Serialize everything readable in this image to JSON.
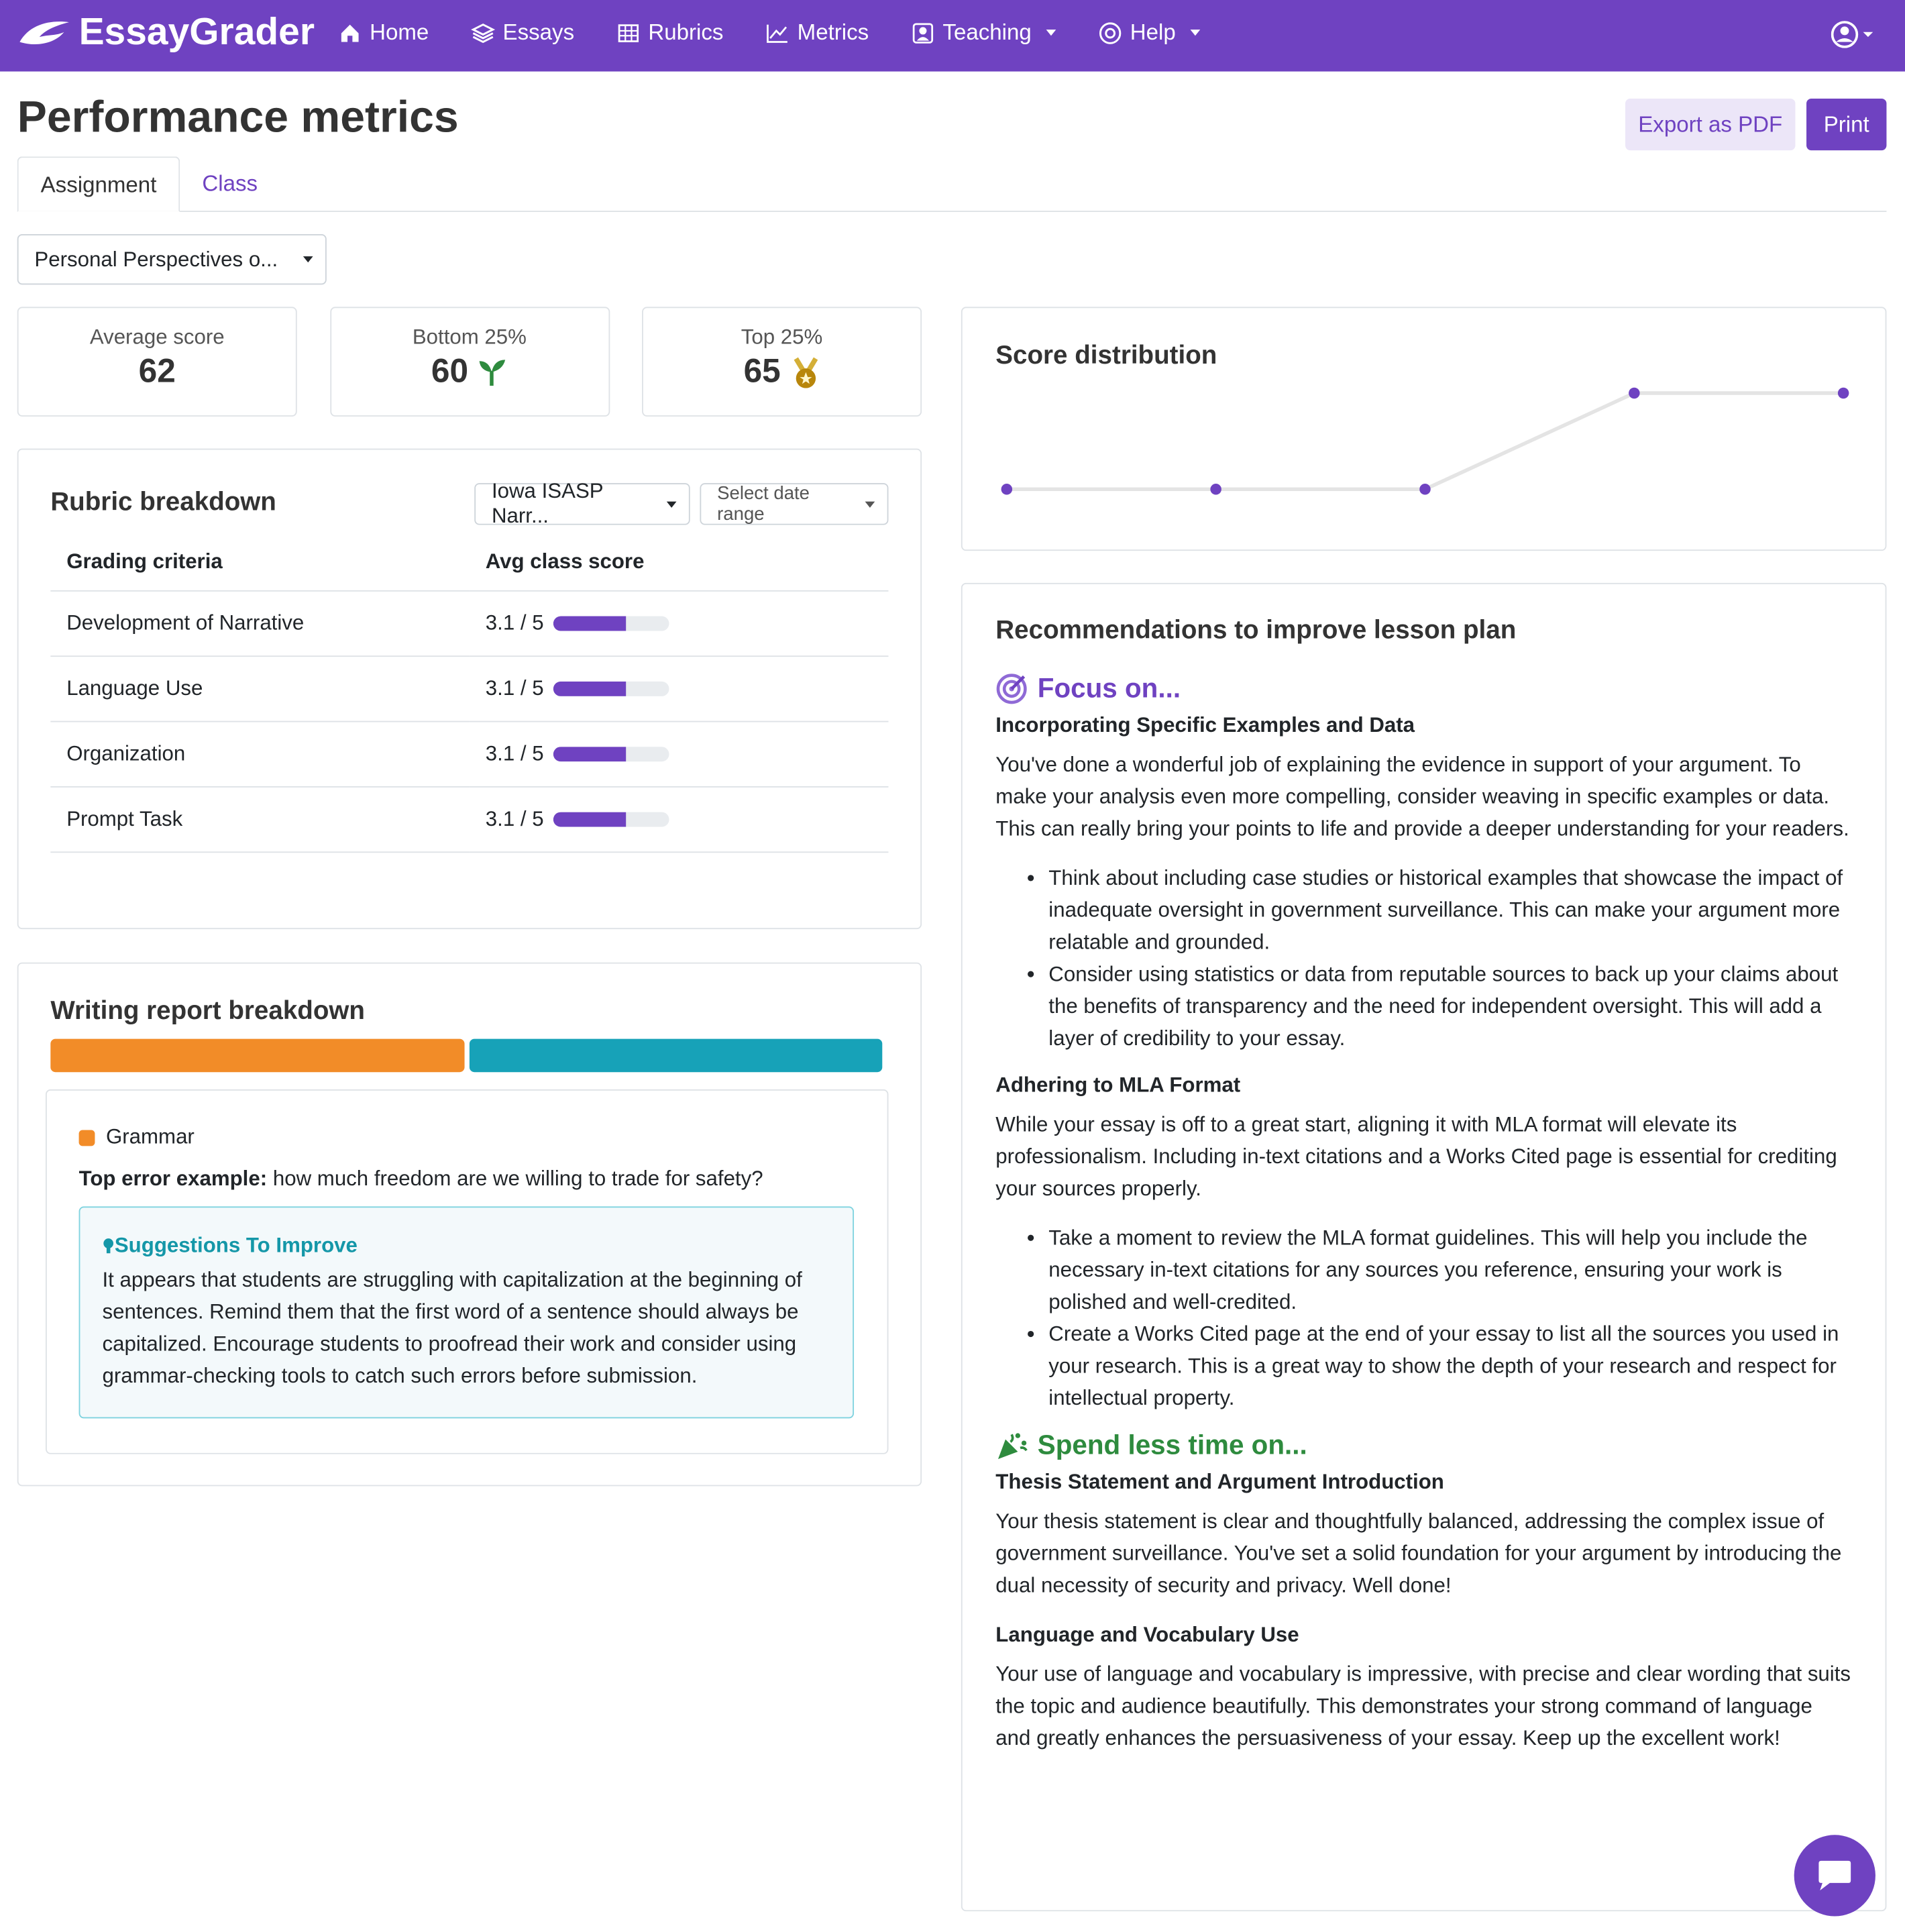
{
  "nav": {
    "brand": "EssayGrader",
    "items": [
      "Home",
      "Essays",
      "Rubrics",
      "Metrics",
      "Teaching",
      "Help"
    ]
  },
  "header": {
    "title": "Performance metrics",
    "buttons": [
      "Export as PDF",
      "Print"
    ]
  },
  "tabs": [
    "Assignment",
    "Class"
  ],
  "assignment_select": "Personal Perspectives o...",
  "stats": [
    {
      "label": "Average score",
      "value": 62
    },
    {
      "label": "Bottom 25%",
      "value": 60
    },
    {
      "label": "Top 25%",
      "value": 65
    }
  ],
  "rubric": {
    "title": "Rubric breakdown",
    "rubric_select": "Iowa ISASP Narr...",
    "date_select": "Select date range",
    "columns": [
      "Grading criteria",
      "Avg class score"
    ],
    "rows": [
      {
        "criterion": "Development of Narrative",
        "score_label": "3.1 / 5",
        "score": 3.1,
        "max": 5
      },
      {
        "criterion": "Language Use",
        "score_label": "3.1 / 5",
        "score": 3.1,
        "max": 5
      },
      {
        "criterion": "Organization",
        "score_label": "3.1 / 5",
        "score": 3.1,
        "max": 5
      },
      {
        "criterion": "Prompt Task",
        "score_label": "3.1 / 5",
        "score": 3.1,
        "max": 5
      }
    ]
  },
  "writing_report": {
    "title": "Writing report breakdown",
    "segments": [
      {
        "color": "#f28c28"
      },
      {
        "color": "#17a2b8"
      }
    ],
    "category": "Grammar",
    "example_label": "Top error example:",
    "example": "how much freedom are we willing to trade for safety?",
    "suggestion_title": "Suggestions To Improve",
    "suggestion": "It appears that students are struggling with capitalization at the beginning of sentences. Remind them that the first word of a sentence should always be capitalized. Encourage students to proofread their work and consider using grammar-checking tools to catch such errors before submission."
  },
  "chart_data": {
    "type": "line",
    "title": "Score distribution",
    "values": [
      1,
      1,
      1,
      2,
      2
    ],
    "color": "#6f42c1"
  },
  "recommendations": {
    "title": "Recommendations to improve lesson plan",
    "sections": [
      {
        "heading": "Focus on...",
        "items": [
          {
            "title": "Incorporating Specific Examples and Data",
            "text": "You've done a wonderful job of explaining the evidence in support of your argument. To make your analysis even more compelling, consider weaving in specific examples or data. This can really bring your points to life and provide a deeper understanding for your readers.",
            "bullets": [
              "Think about including case studies or historical examples that showcase the impact of inadequate oversight in government surveillance. This can make your argument more relatable and grounded.",
              "Consider using statistics or data from reputable sources to back up your claims about the benefits of transparency and the need for independent oversight. This will add a layer of credibility to your essay."
            ]
          },
          {
            "title": "Adhering to MLA Format",
            "text": "While your essay is off to a great start, aligning it with MLA format will elevate its professionalism. Including in-text citations and a Works Cited page is essential for crediting your sources properly.",
            "bullets": [
              "Take a moment to review the MLA format guidelines. This will help you include the necessary in-text citations for any sources you reference, ensuring your work is polished and well-credited.",
              "Create a Works Cited page at the end of your essay to list all the sources you used in your research. This is a great way to show the depth of your research and respect for intellectual property."
            ]
          }
        ]
      },
      {
        "heading": "Spend less time on...",
        "items": [
          {
            "title": "Thesis Statement and Argument Introduction",
            "text": "Your thesis statement is clear and thoughtfully balanced, addressing the complex issue of government surveillance. You've set a solid foundation for your argument by introducing the dual necessity of security and privacy. Well done!",
            "bullets": []
          },
          {
            "title": "Language and Vocabulary Use",
            "text": "Your use of language and vocabulary is impressive, with precise and clear wording that suits the topic and audience beautifully. This demonstrates your strong command of language and greatly enhances the persuasiveness of your essay. Keep up the excellent work!",
            "bullets": []
          }
        ]
      }
    ]
  }
}
